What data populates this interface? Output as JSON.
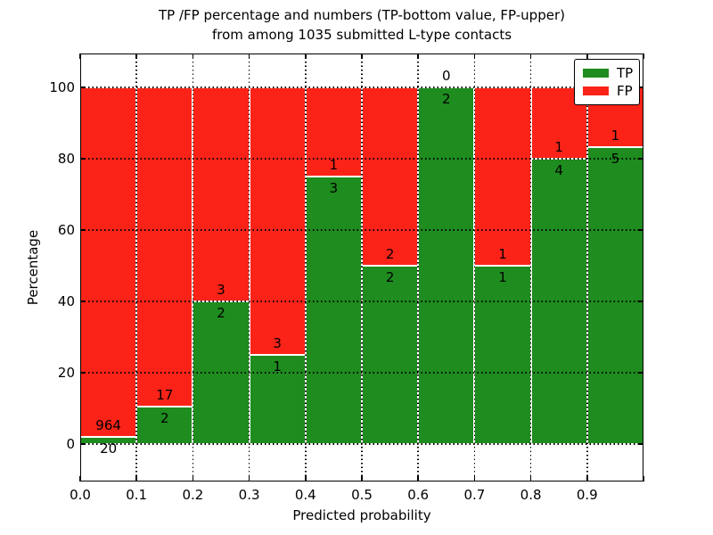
{
  "chart_data": {
    "type": "bar",
    "stacked": true,
    "title": {
      "line1": "TP /FP percentage and numbers (TP-bottom value, FP-upper)",
      "line2": "from among 1035 submitted L-type contacts"
    },
    "xlabel": "Predicted probability",
    "ylabel": "Percentage",
    "total_contacts": 1035,
    "bin_edges": [
      0.0,
      0.1,
      0.2,
      0.3,
      0.4,
      0.5,
      0.6,
      0.7,
      0.8,
      0.9,
      1.0
    ],
    "categories": [
      "0.0-0.1",
      "0.1-0.2",
      "0.2-0.3",
      "0.3-0.4",
      "0.4-0.5",
      "0.5-0.6",
      "0.6-0.7",
      "0.7-0.8",
      "0.8-0.9",
      "0.9-1.0"
    ],
    "series": [
      {
        "name": "TP",
        "color": "#1e8c1e",
        "counts": [
          20,
          2,
          2,
          1,
          3,
          2,
          2,
          1,
          4,
          5
        ],
        "percent": [
          2.0,
          10.5,
          40,
          25,
          75,
          50,
          100,
          50,
          80,
          83.3
        ]
      },
      {
        "name": "FP",
        "color": "#fb2318",
        "counts": [
          964,
          17,
          3,
          3,
          1,
          2,
          0,
          1,
          1,
          1
        ],
        "percent": [
          98.0,
          89.5,
          60,
          75,
          25,
          50,
          0,
          50,
          20,
          16.7
        ]
      }
    ],
    "x_tick_labels": [
      "0.0",
      "0.1",
      "0.2",
      "0.3",
      "0.4",
      "0.5",
      "0.6",
      "0.7",
      "0.8",
      "0.9"
    ],
    "y_tick_labels": [
      "0",
      "20",
      "40",
      "60",
      "80",
      "100"
    ],
    "x_grid_positions": [
      0.1,
      0.2,
      0.3,
      0.4,
      0.5,
      0.6,
      0.7,
      0.8,
      0.9
    ],
    "y_grid_positions": [
      0,
      20,
      40,
      60,
      80,
      100
    ],
    "xlim": [
      0.0,
      1.0
    ],
    "ylim": [
      -10.5,
      109.5
    ],
    "grid": {
      "style": "dotted",
      "color": "#000000",
      "drawn_above_bars": true
    },
    "legend": {
      "position": "upper right",
      "entries": [
        "TP",
        "FP"
      ]
    },
    "frame_color": "#000000",
    "bar_edge_color": "#ffffff"
  }
}
